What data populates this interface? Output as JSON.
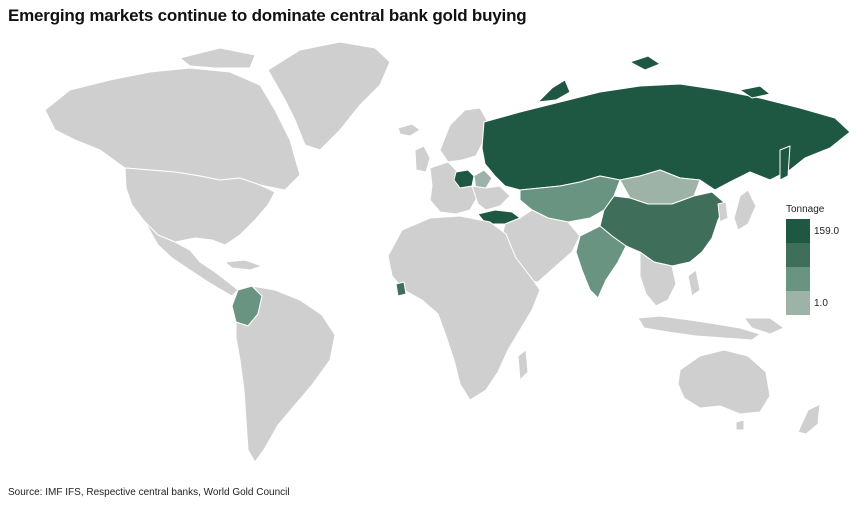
{
  "title": "Emerging markets continue to dominate central bank gold buying",
  "legend": {
    "title": "Tonnage",
    "bins": [
      {
        "label": "159.0",
        "color": "#1e5842"
      },
      {
        "label": "",
        "color": "#3f6e5b"
      },
      {
        "label": "",
        "color": "#6a9482"
      },
      {
        "label": "1.0",
        "color": "#9db3a7"
      }
    ]
  },
  "source": "Source: IMF IFS, Respective central banks, World Gold Council",
  "colors": {
    "land": "#cfcfcf",
    "border": "#ffffff",
    "background": "#ffffff"
  }
}
